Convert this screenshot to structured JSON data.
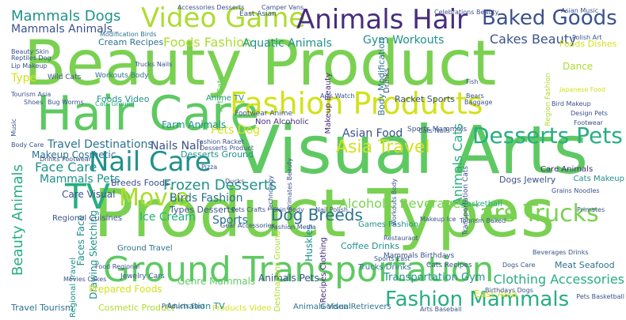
{
  "palette": {
    "purple": "#472d7b",
    "blue": "#3b528b",
    "teal_blue": "#2c728e",
    "teal": "#21918c",
    "green_teal": "#28ae80",
    "green": "#5ec962",
    "light_green": "#7ad151",
    "lime": "#addc30",
    "yellow_green": "#d2e21b",
    "yellow": "#fde725"
  },
  "words": [
    {
      "text": "Beauty Product",
      "color": "#7ad151"
    },
    {
      "text": "Visual Arts",
      "color": "#5ec962"
    },
    {
      "text": "Product Types",
      "color": "#7ad151"
    },
    {
      "text": "Hair Care",
      "color": "#5ec962"
    },
    {
      "text": "Fashion Products",
      "color": "#d2e21b"
    },
    {
      "text": "Ground Transportation",
      "color": "#5ec962"
    },
    {
      "text": "Video Game",
      "color": "#addc30"
    },
    {
      "text": "Animals Hair",
      "color": "#472d7b"
    },
    {
      "text": "Baked Goods",
      "color": "#3b528b"
    },
    {
      "text": "Nail Care",
      "color": "#21918c"
    },
    {
      "text": "TV",
      "color": "#28ae80"
    },
    {
      "text": "Movie",
      "color": "#addc30"
    },
    {
      "text": "Desserts Pets",
      "color": "#28ae80"
    },
    {
      "text": "Cars Trucks",
      "color": "#7ad151"
    },
    {
      "text": "Fashion Mammals",
      "color": "#28ae80"
    },
    {
      "text": "Asia Travel",
      "color": "#d2e21b"
    },
    {
      "text": "Mammals Dogs",
      "color": "#21918c"
    },
    {
      "text": "Mammals Animals",
      "color": "#3b528b"
    },
    {
      "text": "Foods Fashion",
      "color": "#addc30"
    },
    {
      "text": "Cakes Beauty",
      "color": "#3b528b"
    },
    {
      "text": "Beauty Animals",
      "color": "#28ae80"
    },
    {
      "text": "Frozen Desserts",
      "color": "#21918c"
    },
    {
      "text": "Dog Breeds",
      "color": "#2c728e"
    },
    {
      "text": "Clothing Accessories",
      "color": "#28ae80"
    },
    {
      "text": "Aquatic Animals",
      "color": "#21918c"
    },
    {
      "text": "Gym Workouts",
      "color": "#21918c"
    },
    {
      "text": "Foods Dishes",
      "color": "#d2e21b"
    },
    {
      "text": "Animals Cats",
      "color": "#28ae80"
    },
    {
      "text": "Transportation Gym",
      "color": "#21918c"
    },
    {
      "text": "Alcoholic Beverages",
      "color": "#7ad151"
    },
    {
      "text": "Face Care",
      "color": "#21918c"
    },
    {
      "text": "Travel Destinations",
      "color": "#2c728e"
    },
    {
      "text": "Nails Nail",
      "color": "#3b528b"
    },
    {
      "text": "Asian Food",
      "color": "#3b528b"
    },
    {
      "text": "Pets Dog",
      "color": "#d2e21b"
    },
    {
      "text": "Mammals Pets",
      "color": "#21918c"
    },
    {
      "text": "Birds Fashion",
      "color": "#2c728e"
    },
    {
      "text": "Ice Cream",
      "color": "#28ae80"
    },
    {
      "text": "Sports",
      "color": "#2c728e"
    },
    {
      "text": "Drawing Sketching",
      "color": "#21918c"
    },
    {
      "text": "Faces Face",
      "color": "#21918c"
    },
    {
      "text": "Care Visual",
      "color": "#3b528b"
    },
    {
      "text": "Farm Animals",
      "color": "#21918c"
    },
    {
      "text": "Makeup Cosmetic",
      "color": "#2c728e"
    },
    {
      "text": "Desserts Ground",
      "color": "#21918c"
    },
    {
      "text": "Types Desserts",
      "color": "#3b528b"
    },
    {
      "text": "Huskies",
      "color": "#21918c"
    },
    {
      "text": "Genre Mammals",
      "color": "#5ec962"
    },
    {
      "text": "Animals Pets",
      "color": "#3b528b"
    },
    {
      "text": "Golden Retrievers",
      "color": "#2c728e"
    },
    {
      "text": "Animals Visual",
      "color": "#2c728e"
    },
    {
      "text": "Products Video",
      "color": "#d2e21b"
    },
    {
      "text": "Animation TV",
      "color": "#21918c"
    },
    {
      "text": "Cosmetic Product",
      "color": "#addc30"
    },
    {
      "text": "Prepared Foods",
      "color": "#d2e21b"
    },
    {
      "text": "Regional Cuisines",
      "color": "#3b528b"
    },
    {
      "text": "Travel Tourism",
      "color": "#2c728e"
    },
    {
      "text": "Meat Seafood",
      "color": "#2c728e"
    },
    {
      "text": "East Asia",
      "color": "#d2e21b"
    },
    {
      "text": "Coffee Drinks",
      "color": "#21918c"
    },
    {
      "text": "Breeds Foods",
      "color": "#3b528b"
    },
    {
      "text": "Dogs Jewelry",
      "color": "#3b528b"
    },
    {
      "text": "Care Animals",
      "color": "#472d7b"
    },
    {
      "text": "Cats Makeup",
      "color": "#21918c"
    },
    {
      "text": "Body Modification",
      "color": "#2c728e"
    },
    {
      "text": "Racket Sports",
      "color": "#3b528b"
    },
    {
      "text": "Non Alcoholic",
      "color": "#472d7b"
    },
    {
      "text": "Anime TV",
      "color": "#21918c"
    },
    {
      "text": "Type",
      "color": "#d2e21b"
    },
    {
      "text": "Dance",
      "color": "#addc30"
    },
    {
      "text": "Basketball",
      "color": "#28ae80"
    },
    {
      "text": "Games Fashion",
      "color": "#21918c"
    },
    {
      "text": "Trucks Drinks",
      "color": "#2c728e"
    },
    {
      "text": "Mammals Birthdays",
      "color": "#3b528b"
    },
    {
      "text": "Cats Recipes",
      "color": "#3b528b"
    },
    {
      "text": "Jewelry Cars",
      "color": "#3b528b"
    },
    {
      "text": "Cream Recipes",
      "color": "#2c728e"
    },
    {
      "text": "Workouts Body",
      "color": "#2c728e"
    },
    {
      "text": "Wild Cats",
      "color": "#3b528b"
    },
    {
      "text": "Foods Video",
      "color": "#21918c"
    },
    {
      "text": "Arts Cats",
      "color": "#5ec962"
    },
    {
      "text": "Makeup Beauty",
      "color": "#472d7b"
    },
    {
      "text": "Drinks",
      "color": "#3b528b"
    },
    {
      "text": "Recipes Clothing",
      "color": "#472d7b"
    },
    {
      "text": "Destinations Ground",
      "color": "#addc30"
    },
    {
      "text": "Ground Travel",
      "color": "#2c728e"
    },
    {
      "text": "Regional Travel",
      "color": "#21918c"
    },
    {
      "text": "Footwear Anime",
      "color": "#3b528b"
    },
    {
      "text": "Sports Mammals",
      "color": "#3b528b"
    },
    {
      "text": "Accessories Desserts",
      "color": "#3b528b"
    },
    {
      "text": "East Asian",
      "color": "#3b528b"
    },
    {
      "text": "Celebrations Beauty",
      "color": "#3b528b"
    },
    {
      "text": "Asian Music",
      "color": "#3b528b"
    },
    {
      "text": "Modification Birds",
      "color": "#2c728e"
    },
    {
      "text": "Beauty Skin",
      "color": "#3b528b"
    },
    {
      "text": "Reptiles Dog",
      "color": "#3b528b"
    },
    {
      "text": "Lip Makeup",
      "color": "#3b528b"
    },
    {
      "text": "Tourism Asia",
      "color": "#3b528b"
    },
    {
      "text": "Shoes",
      "color": "#3b528b"
    },
    {
      "text": "Bug Worms",
      "color": "#3b528b"
    },
    {
      "text": "Trucks Nails",
      "color": "#3b528b"
    },
    {
      "text": "Cats Ground",
      "color": "#28ae80"
    },
    {
      "text": "Body Care",
      "color": "#3b528b"
    },
    {
      "text": "Polish Art",
      "color": "#3b528b"
    },
    {
      "text": "Japanese Food",
      "color": "#d2e21b"
    },
    {
      "text": "Region Fashion",
      "color": "#addc30"
    },
    {
      "text": "Fish",
      "color": "#3b528b"
    },
    {
      "text": "Bears",
      "color": "#3b528b"
    },
    {
      "text": "Baggage",
      "color": "#3b528b"
    },
    {
      "text": "Design Pets",
      "color": "#3b528b"
    },
    {
      "text": "Footwear",
      "color": "#3b528b"
    },
    {
      "text": "Grains Noodles",
      "color": "#3b528b"
    },
    {
      "text": "Primates",
      "color": "#3b528b"
    },
    {
      "text": "Transportation Cats",
      "color": "#3b528b"
    },
    {
      "text": "Pets Basketball",
      "color": "#3b528b"
    },
    {
      "text": "Beverages Drinks",
      "color": "#3b528b"
    },
    {
      "text": "Restaurant",
      "color": "#3b528b"
    },
    {
      "text": "Sports East",
      "color": "#3b528b"
    },
    {
      "text": "Products East",
      "color": "#3b528b"
    },
    {
      "text": "Movies Cakes",
      "color": "#3b528b"
    },
    {
      "text": "Food Regional",
      "color": "#3b528b"
    },
    {
      "text": "Birthdays Dogs",
      "color": "#3b528b"
    },
    {
      "text": "Tourism Baked",
      "color": "#3b528b"
    },
    {
      "text": "Pets Crafts",
      "color": "#3b528b"
    },
    {
      "text": "Skin Body",
      "color": "#3b528b"
    },
    {
      "text": "Nail Polish",
      "color": "#3b528b"
    },
    {
      "text": "Fashion Media",
      "color": "#3b528b"
    },
    {
      "text": "Makeup Ice",
      "color": "#3b528b"
    },
    {
      "text": "Gear Accessories",
      "color": "#3b528b"
    },
    {
      "text": "Dogs Care",
      "color": "#3b528b"
    },
    {
      "text": "Arts Baseball",
      "color": "#3b528b"
    },
    {
      "text": "Drinks Footwear",
      "color": "#3b528b"
    },
    {
      "text": "Bird Makeup",
      "color": "#3b528b"
    },
    {
      "text": "Fashion Racket",
      "color": "#3b528b"
    },
    {
      "text": "Desserts Product",
      "color": "#3b528b"
    },
    {
      "text": "Arts Watch",
      "color": "#3b528b"
    },
    {
      "text": "Cats Nails",
      "color": "#3b528b"
    },
    {
      "text": "Music",
      "color": "#3b528b"
    },
    {
      "text": "Pizza",
      "color": "#3b528b"
    },
    {
      "text": "Ducks",
      "color": "#3b528b"
    },
    {
      "text": "Technology",
      "color": "#3b528b"
    },
    {
      "text": "Primates Beauty",
      "color": "#3b528b"
    },
    {
      "text": "Workouts Body",
      "color": "#3b528b"
    },
    {
      "text": "Camper Vans",
      "color": "#3b528b"
    }
  ]
}
